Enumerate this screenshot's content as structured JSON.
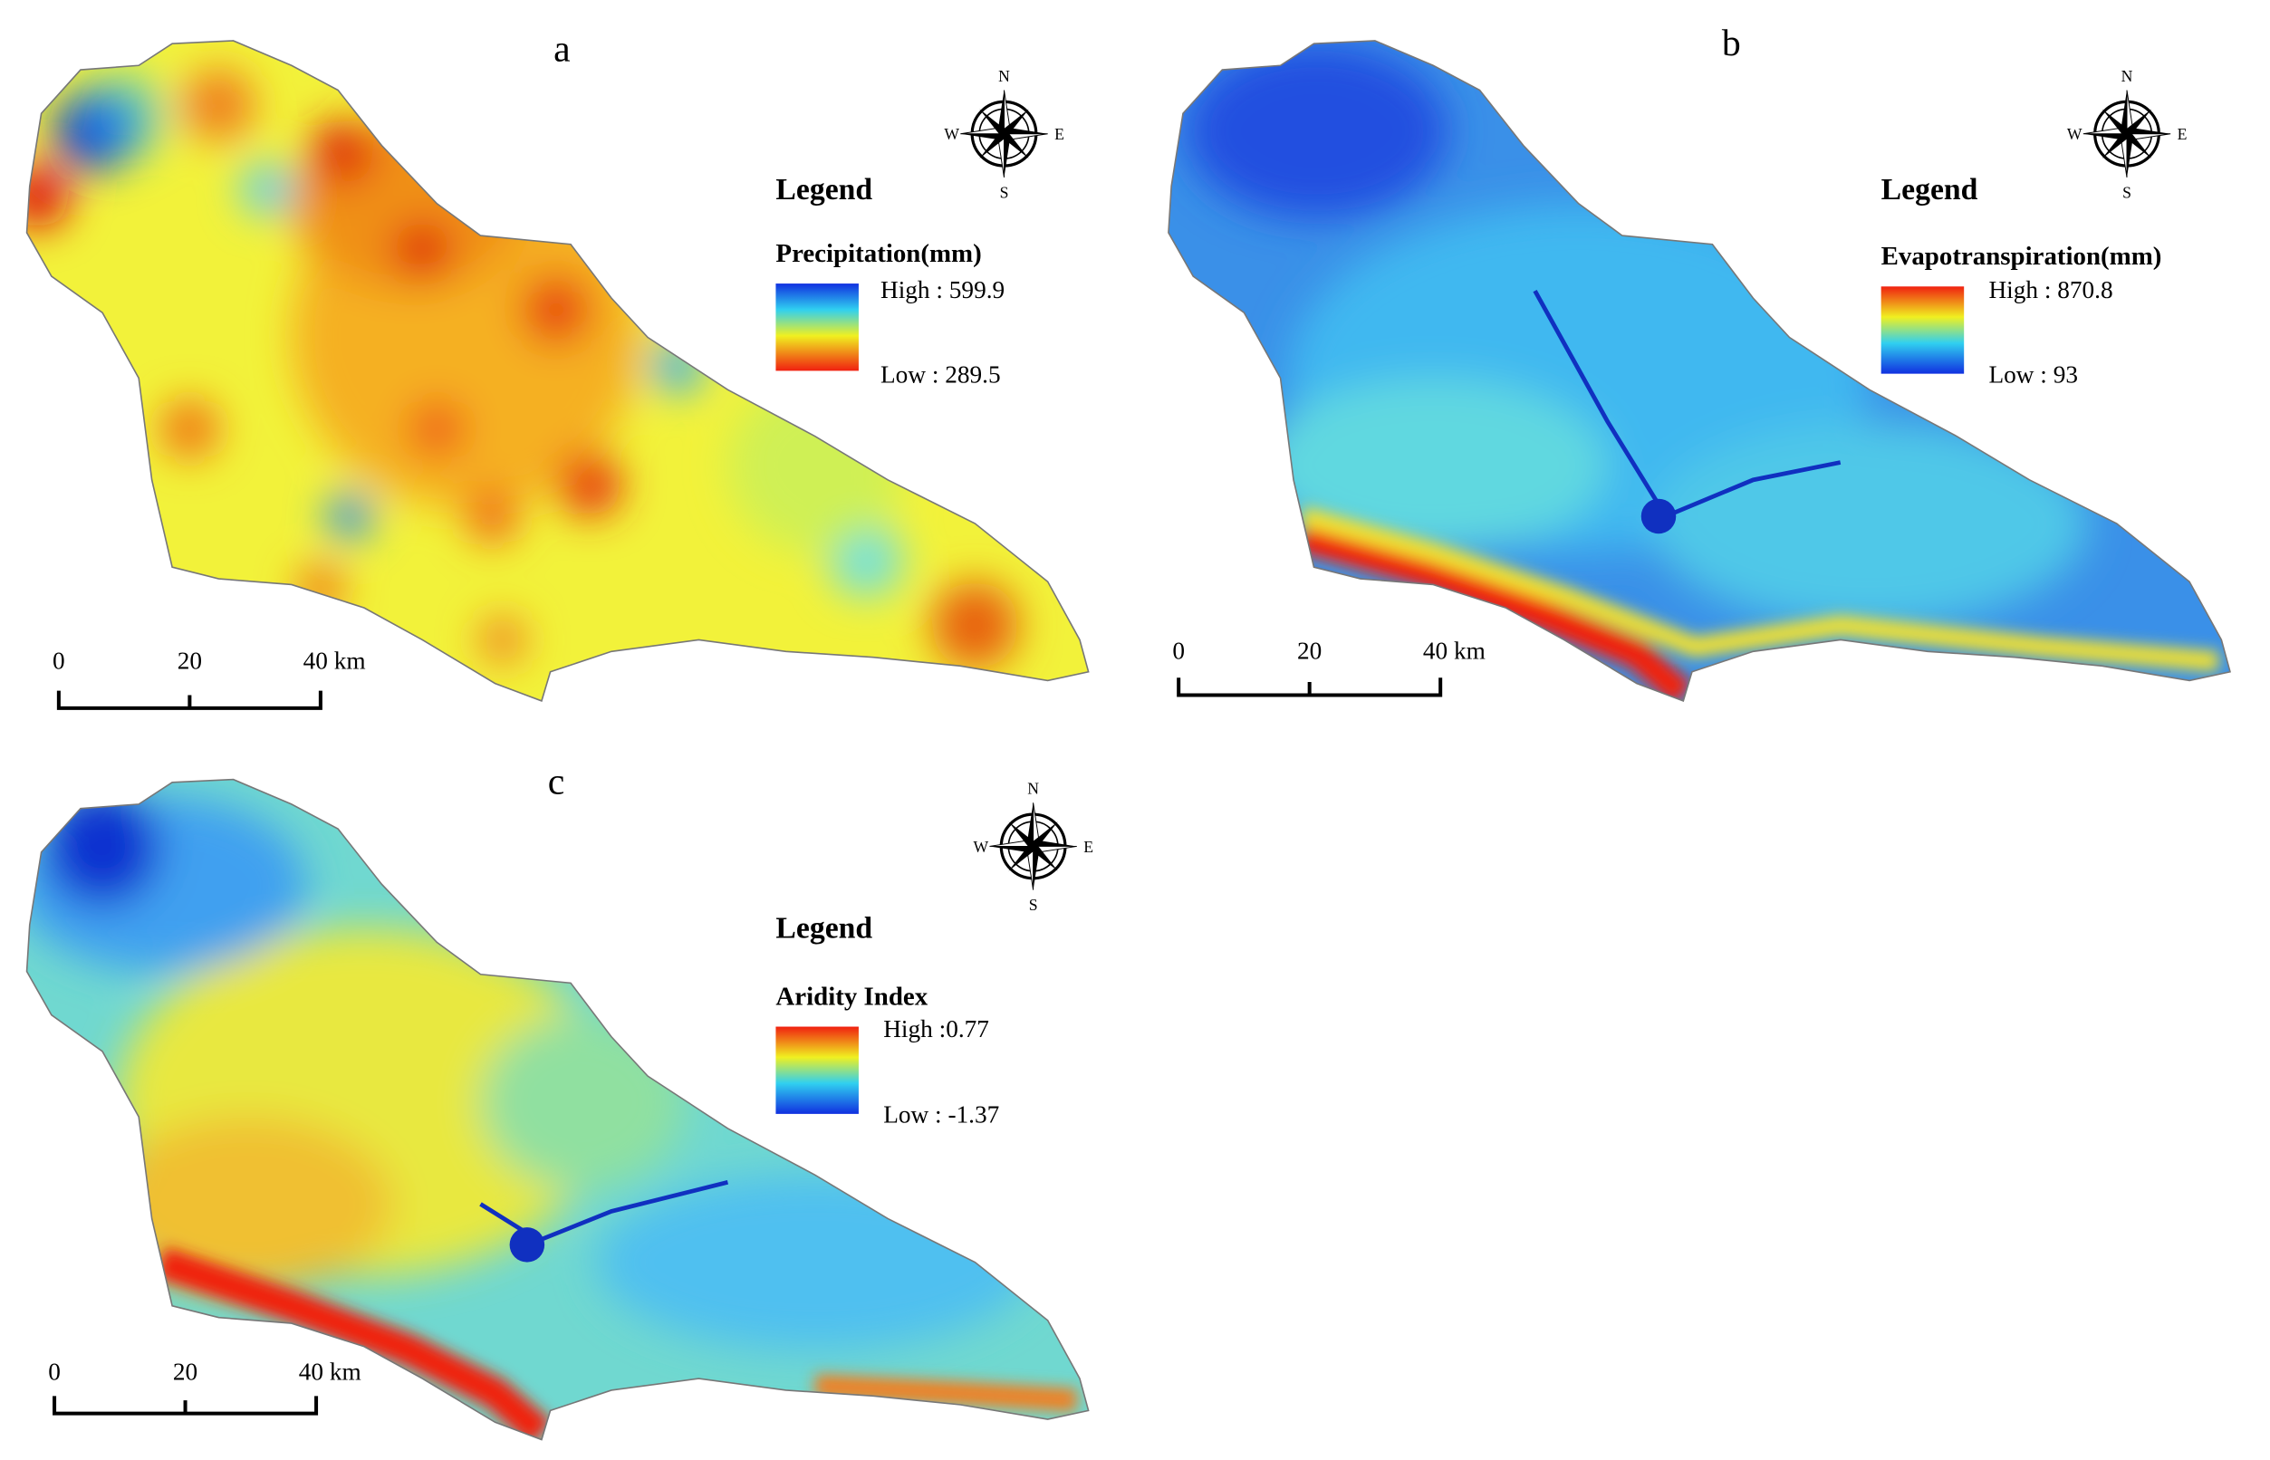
{
  "panels": [
    {
      "label": "a",
      "legend_title": "Legend",
      "variable": "Precipitation(mm)",
      "high": "High : 599.9",
      "low": "Low : 289.5",
      "scale_labels": [
        "0",
        "20",
        "40 km"
      ],
      "compass": {
        "n": "N",
        "s": "S",
        "e": "E",
        "w": "W"
      }
    },
    {
      "label": "b",
      "legend_title": "Legend",
      "variable": "Evapotranspiration(mm)",
      "high": "High : 870.8",
      "low": "Low : 93",
      "scale_labels": [
        "0",
        "20",
        "40 km"
      ],
      "compass": {
        "n": "N",
        "s": "S",
        "e": "E",
        "w": "W"
      }
    },
    {
      "label": "c",
      "legend_title": "Legend",
      "variable": "Aridity Index",
      "high": "High :0.77",
      "low": "Low : -1.37",
      "scale_labels": [
        "0",
        "20",
        "40 km"
      ],
      "compass": {
        "n": "N",
        "s": "S",
        "e": "E",
        "w": "W"
      }
    }
  ]
}
